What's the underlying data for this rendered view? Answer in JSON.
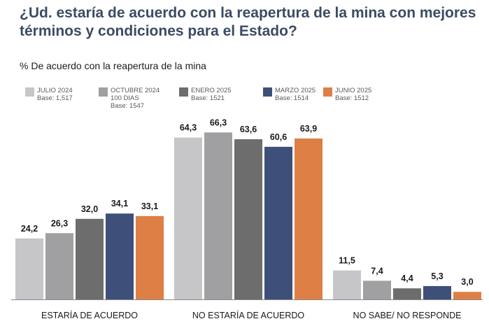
{
  "title_line1": "¿Ud. estaría de acuerdo con la reapertura de la mina con mejores",
  "title_line2": "términos y condiciones para el Estado?",
  "chart_data": {
    "type": "bar",
    "title": "¿Ud. estaría de acuerdo con la reapertura de la mina con mejores términos y condiciones para el Estado?",
    "subtitle": "% De acuerdo con la reapertura de la mina",
    "categories": [
      "ESTARÍA DE ACUERDO",
      "NO ESTARÍA DE ACUERDO",
      "NO SABE/ NO RESPONDE"
    ],
    "series": [
      {
        "name": "JULIO 2024",
        "lines": [
          "JULIO 2024",
          "Base: 1,517"
        ],
        "color": "#c6c6c8",
        "values": [
          24.2,
          64.3,
          11.5
        ],
        "labels": [
          "24,2",
          "64,3",
          "11,5"
        ]
      },
      {
        "name": "OCTUBRE 2024",
        "lines": [
          "OCTUBRE 2024",
          "100 DIAS",
          "Base: 1547"
        ],
        "color": "#a0a0a2",
        "values": [
          26.3,
          66.3,
          7.4
        ],
        "labels": [
          "26,3",
          "66,3",
          "7,4"
        ]
      },
      {
        "name": "ENERO 2025",
        "lines": [
          "ENERO 2025",
          "Base: 1521"
        ],
        "color": "#6d6d6d",
        "values": [
          32.0,
          63.6,
          4.4
        ],
        "labels": [
          "32,0",
          "63,6",
          "4,4"
        ]
      },
      {
        "name": "MARZO 2025",
        "lines": [
          "MARZO 2025",
          "Base: 1514"
        ],
        "color": "#3e5079",
        "values": [
          34.1,
          60.6,
          5.3
        ],
        "labels": [
          "34,1",
          "60,6",
          "5,3"
        ]
      },
      {
        "name": "JUNIO 2025",
        "lines": [
          "JUNIO 2025",
          "Base: 1512"
        ],
        "color": "#de7f45",
        "values": [
          33.1,
          63.9,
          3.0
        ],
        "labels": [
          "33,1",
          "63,9",
          "3,0"
        ]
      }
    ],
    "ylim": [
      0,
      100
    ],
    "grid": false,
    "legend_position": "top-left"
  }
}
